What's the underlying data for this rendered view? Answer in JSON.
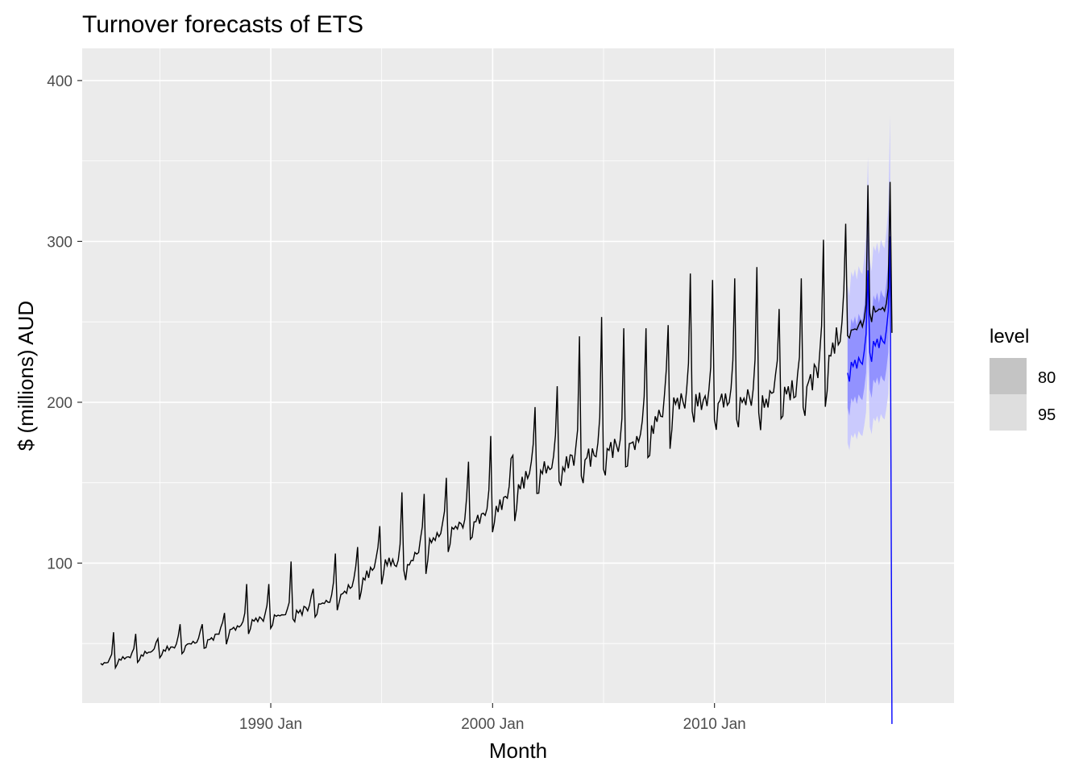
{
  "chart_data": {
    "type": "line",
    "title": "Turnover forecasts of ETS",
    "xlabel": "Month",
    "ylabel": "$ (millions) AUD",
    "x_ticks": [
      {
        "label": "1990 Jan",
        "value": 1990.0
      },
      {
        "label": "2000 Jan",
        "value": 2000.0
      },
      {
        "label": "2010 Jan",
        "value": 2010.0
      }
    ],
    "y_ticks": [
      100,
      200,
      300,
      400
    ],
    "xlim": [
      1981.5,
      2020.8
    ],
    "ylim": [
      13,
      420
    ],
    "grid": true,
    "legend": {
      "title": "level",
      "position": "right",
      "entries": [
        {
          "label": "80",
          "color": "#c4c4c4"
        },
        {
          "label": "95",
          "color": "#dedede"
        }
      ]
    },
    "colors": {
      "panel": "#ebebeb",
      "grid": "#ffffff",
      "history_line": "#000000",
      "forecast_line": "#0000ff",
      "interval_80": "#8c8cff",
      "interval_95": "#c6c6ff"
    },
    "series": [
      {
        "role": "history",
        "start": 1982.33,
        "step": 0.083333,
        "annual_peaks": [
          [
            1982,
            57
          ],
          [
            1983,
            56
          ],
          [
            1984,
            53
          ],
          [
            1985,
            62
          ],
          [
            1986,
            62
          ],
          [
            1987,
            69
          ],
          [
            1988,
            87
          ],
          [
            1989,
            87
          ],
          [
            1990,
            101
          ],
          [
            1991,
            84
          ],
          [
            1992,
            106
          ],
          [
            1993,
            110
          ],
          [
            1994,
            123
          ],
          [
            1995,
            144
          ],
          [
            1996,
            143
          ],
          [
            1997,
            153
          ],
          [
            1998,
            163
          ],
          [
            1999,
            179
          ],
          [
            2000,
            167
          ],
          [
            2001,
            197
          ],
          [
            2002,
            210
          ],
          [
            2003,
            241
          ],
          [
            2004,
            253
          ],
          [
            2005,
            246
          ],
          [
            2006,
            246
          ],
          [
            2007,
            248
          ],
          [
            2008,
            280
          ],
          [
            2009,
            276
          ],
          [
            2010,
            277
          ],
          [
            2011,
            284
          ],
          [
            2012,
            258
          ],
          [
            2013,
            277
          ],
          [
            2014,
            301
          ],
          [
            2015,
            311
          ]
        ],
        "annual_base": [
          [
            1982,
            36
          ],
          [
            1983,
            40
          ],
          [
            1984,
            43
          ],
          [
            1985,
            46
          ],
          [
            1986,
            49
          ],
          [
            1987,
            52
          ],
          [
            1988,
            58
          ],
          [
            1989,
            63
          ],
          [
            1990,
            67
          ],
          [
            1991,
            69
          ],
          [
            1992,
            73
          ],
          [
            1993,
            80
          ],
          [
            1994,
            90
          ],
          [
            1995,
            102
          ],
          [
            1996,
            98
          ],
          [
            1997,
            112
          ],
          [
            1998,
            120
          ],
          [
            1999,
            125
          ],
          [
            2000,
            132
          ],
          [
            2001,
            148
          ],
          [
            2002,
            158
          ],
          [
            2003,
            162
          ],
          [
            2004,
            166
          ],
          [
            2005,
            170
          ],
          [
            2006,
            172
          ],
          [
            2007,
            182
          ],
          [
            2008,
            200
          ],
          [
            2009,
            202
          ],
          [
            2010,
            200
          ],
          [
            2011,
            203
          ],
          [
            2012,
            203
          ],
          [
            2013,
            205
          ],
          [
            2014,
            208
          ],
          [
            2015,
            228
          ],
          [
            2016,
            248
          ],
          [
            2017,
            258
          ]
        ]
      },
      {
        "role": "actuals_continued",
        "peaks": [
          [
            2016,
            335
          ],
          [
            2017,
            337
          ]
        ]
      },
      {
        "role": "forecast",
        "start": 2016.0,
        "end": 2018.0,
        "mean_base": [
          [
            2016,
            225
          ],
          [
            2017,
            238
          ]
        ],
        "mean_peak": [
          [
            2016,
            282
          ],
          [
            2017,
            303
          ]
        ],
        "pi80_low": 205,
        "pi95_low": 188,
        "pi80_peak_high": 330,
        "pi95_peak_high": 376
      }
    ]
  }
}
